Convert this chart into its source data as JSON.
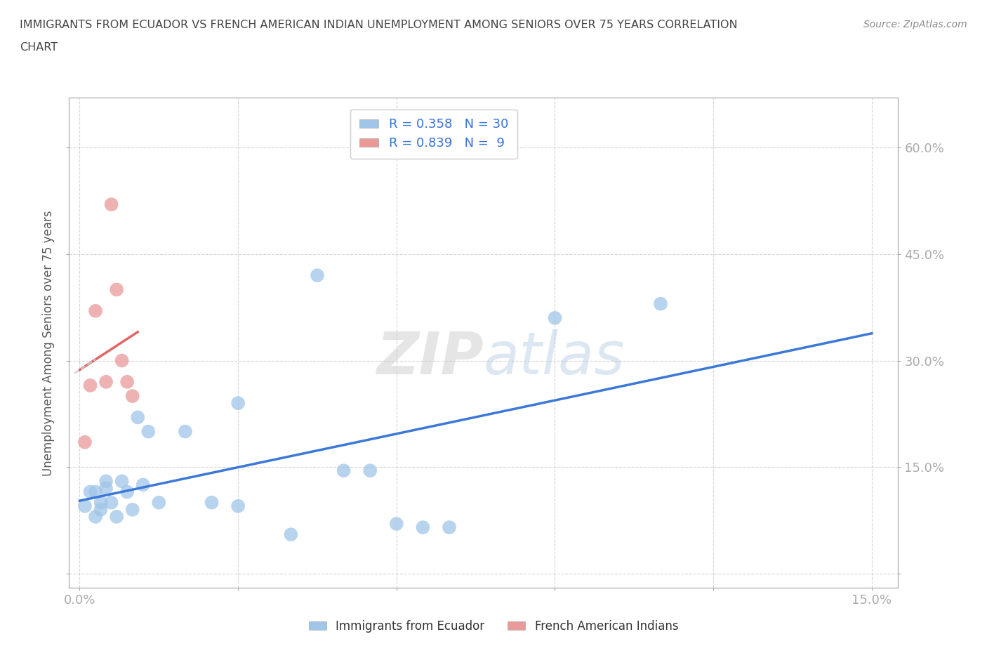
{
  "title_line1": "IMMIGRANTS FROM ECUADOR VS FRENCH AMERICAN INDIAN UNEMPLOYMENT AMONG SENIORS OVER 75 YEARS CORRELATION",
  "title_line2": "CHART",
  "source_text": "Source: ZipAtlas.com",
  "ylabel": "Unemployment Among Seniors over 75 years",
  "xlabel": "",
  "xlim": [
    -0.002,
    0.155
  ],
  "ylim": [
    -0.02,
    0.67
  ],
  "xticks": [
    0.0,
    0.03,
    0.06,
    0.09,
    0.12,
    0.15
  ],
  "yticks": [
    0.0,
    0.15,
    0.3,
    0.45,
    0.6
  ],
  "ytick_labels_right": [
    "",
    "15.0%",
    "30.0%",
    "45.0%",
    "60.0%"
  ],
  "xtick_labels": [
    "0.0%",
    "",
    "",
    "",
    "",
    "15.0%"
  ],
  "blue_color": "#9fc5e8",
  "pink_color": "#ea9999",
  "blue_line_color": "#3c78d8",
  "pink_line_color": "#e06666",
  "pink_dash_color": "#cccccc",
  "watermark_text": "ZIPatlas",
  "legend_R1": "R = 0.358",
  "legend_N1": "N = 30",
  "legend_R2": "R = 0.839",
  "legend_N2": "N =  9",
  "legend_label1": "Immigrants from Ecuador",
  "legend_label2": "French American Indians",
  "ecuador_x": [
    0.001,
    0.002,
    0.003,
    0.003,
    0.004,
    0.004,
    0.005,
    0.005,
    0.006,
    0.007,
    0.008,
    0.009,
    0.01,
    0.011,
    0.012,
    0.013,
    0.015,
    0.02,
    0.025,
    0.03,
    0.03,
    0.04,
    0.045,
    0.05,
    0.055,
    0.06,
    0.065,
    0.07,
    0.09,
    0.11
  ],
  "ecuador_y": [
    0.095,
    0.115,
    0.115,
    0.08,
    0.1,
    0.09,
    0.13,
    0.12,
    0.1,
    0.08,
    0.13,
    0.115,
    0.09,
    0.22,
    0.125,
    0.2,
    0.1,
    0.2,
    0.1,
    0.095,
    0.24,
    0.055,
    0.42,
    0.145,
    0.145,
    0.07,
    0.065,
    0.065,
    0.36,
    0.38
  ],
  "french_x": [
    0.001,
    0.002,
    0.003,
    0.005,
    0.006,
    0.007,
    0.008,
    0.009,
    0.01
  ],
  "french_y": [
    0.185,
    0.265,
    0.37,
    0.27,
    0.52,
    0.4,
    0.3,
    0.27,
    0.25
  ],
  "background_color": "#ffffff",
  "grid_color": "#cccccc",
  "title_color": "#444444",
  "axis_label_color": "#595959",
  "tick_label_color": "#3c78d8"
}
